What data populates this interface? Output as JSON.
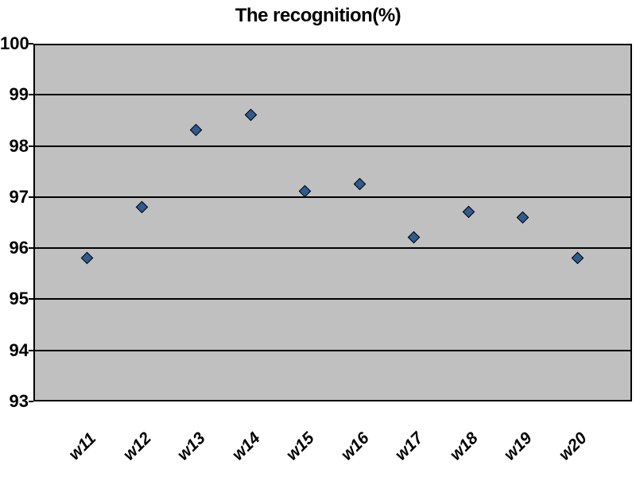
{
  "chart_data": {
    "type": "scatter",
    "title": "The recognition(%)",
    "categories": [
      "w11",
      "w12",
      "w13",
      "w14",
      "w15",
      "w16",
      "w17",
      "w18",
      "w19",
      "w20"
    ],
    "values": [
      95.8,
      96.8,
      98.3,
      98.6,
      97.1,
      97.25,
      96.2,
      96.7,
      96.6,
      95.8
    ],
    "ylim": [
      93,
      100
    ],
    "yticks": [
      93,
      94,
      95,
      96,
      97,
      98,
      99,
      100
    ],
    "xlabel": "",
    "ylabel": "",
    "grid": true,
    "legend": false,
    "plot_background": "#c0c0c0",
    "gridline_color": "#000000",
    "marker": {
      "shape": "diamond",
      "fill": "#2f5b8f",
      "border": "#000000"
    }
  }
}
